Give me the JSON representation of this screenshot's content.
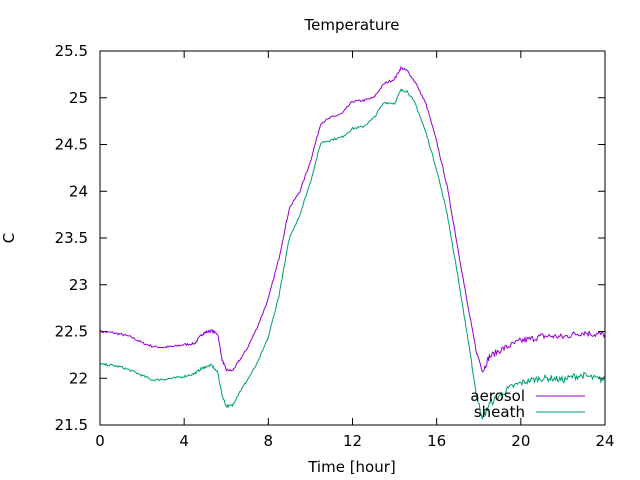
{
  "chart_data": {
    "type": "line",
    "title": "Temperature",
    "xlabel": "Time [hour]",
    "ylabel": "C",
    "xlim": [
      0,
      24
    ],
    "ylim": [
      21.5,
      25.5
    ],
    "x_ticks": [
      0,
      4,
      8,
      12,
      16,
      20,
      24
    ],
    "y_ticks": [
      21.5,
      22,
      22.5,
      23,
      23.5,
      24,
      24.5,
      25,
      25.5
    ],
    "x_tick_labels": [
      "0",
      "4",
      "8",
      "12",
      "16",
      "20",
      "24"
    ],
    "y_tick_labels": [
      "21.5",
      "22",
      "22.5",
      "23",
      "23.5",
      "24",
      "24.5",
      "25",
      "25.5"
    ],
    "grid": false,
    "legend_position": "bottom-right",
    "series": [
      {
        "name": "aerosol",
        "color": "#9400d3",
        "points": [
          [
            0,
            22.5
          ],
          [
            0.5,
            22.49
          ],
          [
            1,
            22.47
          ],
          [
            1.5,
            22.44
          ],
          [
            2,
            22.38
          ],
          [
            2.5,
            22.34
          ],
          [
            3,
            22.33
          ],
          [
            3.5,
            22.34
          ],
          [
            4,
            22.36
          ],
          [
            4.5,
            22.37
          ],
          [
            4.8,
            22.46
          ],
          [
            5,
            22.49
          ],
          [
            5.3,
            22.51
          ],
          [
            5.6,
            22.47
          ],
          [
            5.8,
            22.2
          ],
          [
            6,
            22.09
          ],
          [
            6.3,
            22.08
          ],
          [
            6.6,
            22.18
          ],
          [
            7,
            22.32
          ],
          [
            7.5,
            22.56
          ],
          [
            8,
            22.85
          ],
          [
            8.5,
            23.28
          ],
          [
            9,
            23.82
          ],
          [
            9.5,
            24.0
          ],
          [
            10,
            24.32
          ],
          [
            10.5,
            24.73
          ],
          [
            11,
            24.79
          ],
          [
            11.5,
            24.83
          ],
          [
            12,
            24.96
          ],
          [
            12.5,
            24.97
          ],
          [
            13,
            25.0
          ],
          [
            13.5,
            25.15
          ],
          [
            14,
            25.2
          ],
          [
            14.3,
            25.32
          ],
          [
            14.6,
            25.29
          ],
          [
            15,
            25.16
          ],
          [
            15.5,
            24.93
          ],
          [
            16,
            24.53
          ],
          [
            16.5,
            24.05
          ],
          [
            17,
            23.4
          ],
          [
            17.5,
            22.75
          ],
          [
            17.9,
            22.27
          ],
          [
            18.2,
            22.08
          ],
          [
            18.5,
            22.23
          ],
          [
            19,
            22.3
          ],
          [
            19.5,
            22.35
          ],
          [
            20,
            22.4
          ],
          [
            20.5,
            22.42
          ],
          [
            21,
            22.45
          ],
          [
            21.5,
            22.45
          ],
          [
            22,
            22.44
          ],
          [
            22.5,
            22.47
          ],
          [
            23,
            22.49
          ],
          [
            23.5,
            22.47
          ],
          [
            24,
            22.47
          ]
        ]
      },
      {
        "name": "sheath",
        "color": "#009e73",
        "points": [
          [
            0,
            22.15
          ],
          [
            0.5,
            22.14
          ],
          [
            1,
            22.12
          ],
          [
            1.5,
            22.08
          ],
          [
            2,
            22.03
          ],
          [
            2.5,
            21.98
          ],
          [
            3,
            21.99
          ],
          [
            3.5,
            22.0
          ],
          [
            4,
            22.02
          ],
          [
            4.5,
            22.05
          ],
          [
            4.8,
            22.1
          ],
          [
            5,
            22.12
          ],
          [
            5.3,
            22.14
          ],
          [
            5.6,
            22.06
          ],
          [
            5.8,
            21.82
          ],
          [
            6,
            21.7
          ],
          [
            6.3,
            21.71
          ],
          [
            6.6,
            21.84
          ],
          [
            7,
            21.98
          ],
          [
            7.5,
            22.17
          ],
          [
            8,
            22.44
          ],
          [
            8.5,
            22.88
          ],
          [
            9,
            23.5
          ],
          [
            9.5,
            23.75
          ],
          [
            10,
            24.1
          ],
          [
            10.5,
            24.52
          ],
          [
            11,
            24.55
          ],
          [
            11.5,
            24.58
          ],
          [
            12,
            24.67
          ],
          [
            12.5,
            24.69
          ],
          [
            13,
            24.78
          ],
          [
            13.5,
            24.95
          ],
          [
            14,
            24.94
          ],
          [
            14.3,
            25.08
          ],
          [
            14.6,
            25.07
          ],
          [
            15,
            24.93
          ],
          [
            15.5,
            24.62
          ],
          [
            16,
            24.23
          ],
          [
            16.5,
            23.76
          ],
          [
            17,
            23.1
          ],
          [
            17.5,
            22.4
          ],
          [
            17.9,
            21.8
          ],
          [
            18.2,
            21.57
          ],
          [
            18.5,
            21.72
          ],
          [
            19,
            21.82
          ],
          [
            19.5,
            21.9
          ],
          [
            20,
            21.95
          ],
          [
            20.5,
            21.98
          ],
          [
            21,
            22.0
          ],
          [
            21.5,
            22.0
          ],
          [
            22,
            21.98
          ],
          [
            22.5,
            22.02
          ],
          [
            23,
            22.03
          ],
          [
            23.5,
            22.0
          ],
          [
            24,
            21.98
          ]
        ]
      }
    ]
  }
}
